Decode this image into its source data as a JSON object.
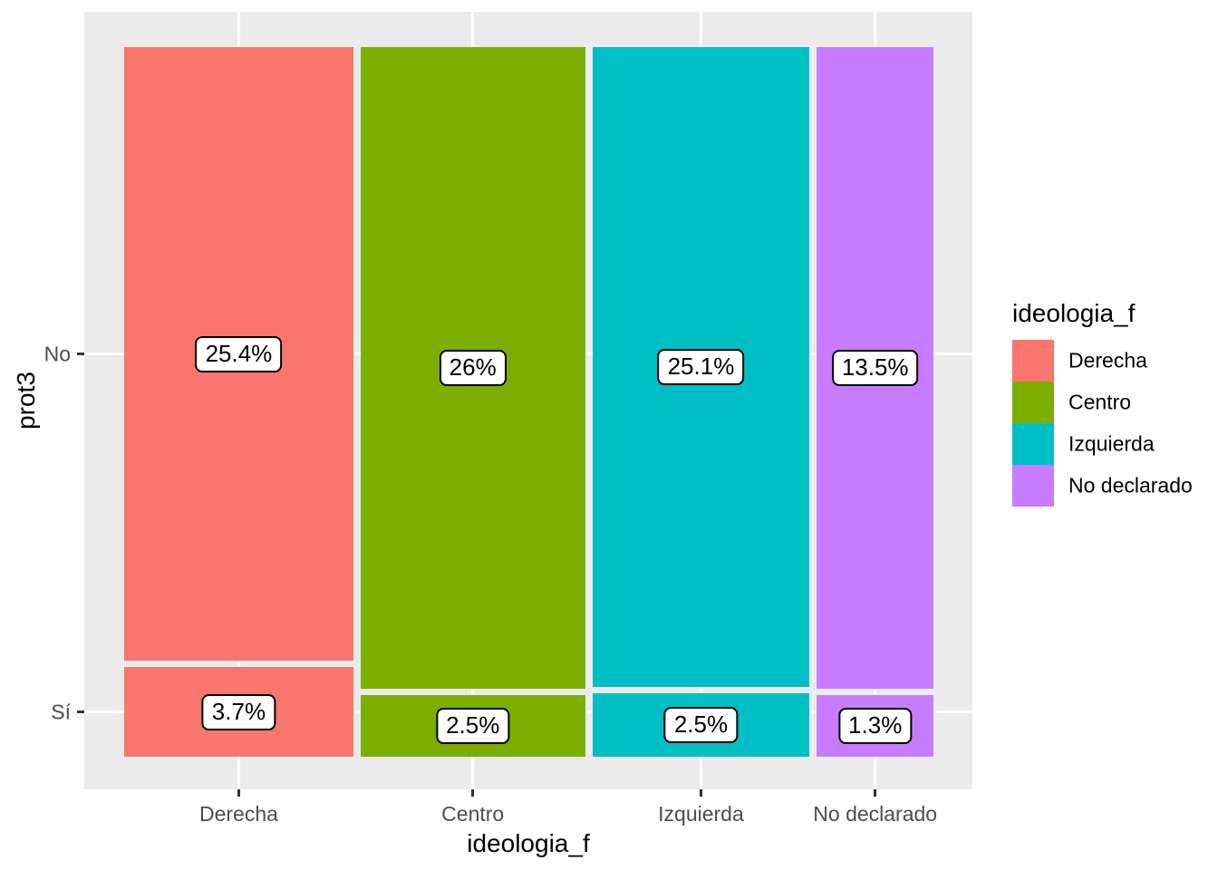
{
  "figure": {
    "background": "#FFFFFF",
    "panel_background": "#EBEBEB",
    "grid_color": "#FFFFFF",
    "tick_color": "#333333",
    "tick_label_color": "#4D4D4D",
    "text_color": "#000000"
  },
  "axes": {
    "x_title": "ideologia_f",
    "y_title": "prot3",
    "x_tick_labels": [
      "Derecha",
      "Centro",
      "Izquierda",
      "No declarado"
    ],
    "y_tick_labels": [
      "No",
      "Sí"
    ]
  },
  "legend": {
    "title": "ideologia_f",
    "items": [
      {
        "label": "Derecha",
        "color": "#F8766D"
      },
      {
        "label": "Centro",
        "color": "#7CAE00"
      },
      {
        "label": "Izquierda",
        "color": "#00BFC4"
      },
      {
        "label": "No declarado",
        "color": "#C77CFF"
      }
    ]
  },
  "chart_data": {
    "type": "bar",
    "subtype": "mosaic",
    "title": "",
    "xlabel": "ideologia_f",
    "ylabel": "prot3",
    "categories": [
      "Derecha",
      "Centro",
      "Izquierda",
      "No declarado"
    ],
    "category_colors": [
      "#F8766D",
      "#7CAE00",
      "#00BFC4",
      "#C77CFF"
    ],
    "y_categories": [
      "No",
      "Sí"
    ],
    "series": [
      {
        "name": "No",
        "values": [
          25.4,
          26,
          25.1,
          13.5
        ],
        "labels": [
          "25.4%",
          "26%",
          "25.1%",
          "13.5%"
        ]
      },
      {
        "name": "Sí",
        "values": [
          3.7,
          2.5,
          2.5,
          1.3
        ],
        "labels": [
          "3.7%",
          "2.5%",
          "2.5%",
          "1.3%"
        ]
      }
    ],
    "column_totals": [
      29.1,
      28.5,
      27.6,
      14.8
    ],
    "units": "percent of total sample",
    "legend_position": "right",
    "grid": "major-white-on-grey"
  }
}
